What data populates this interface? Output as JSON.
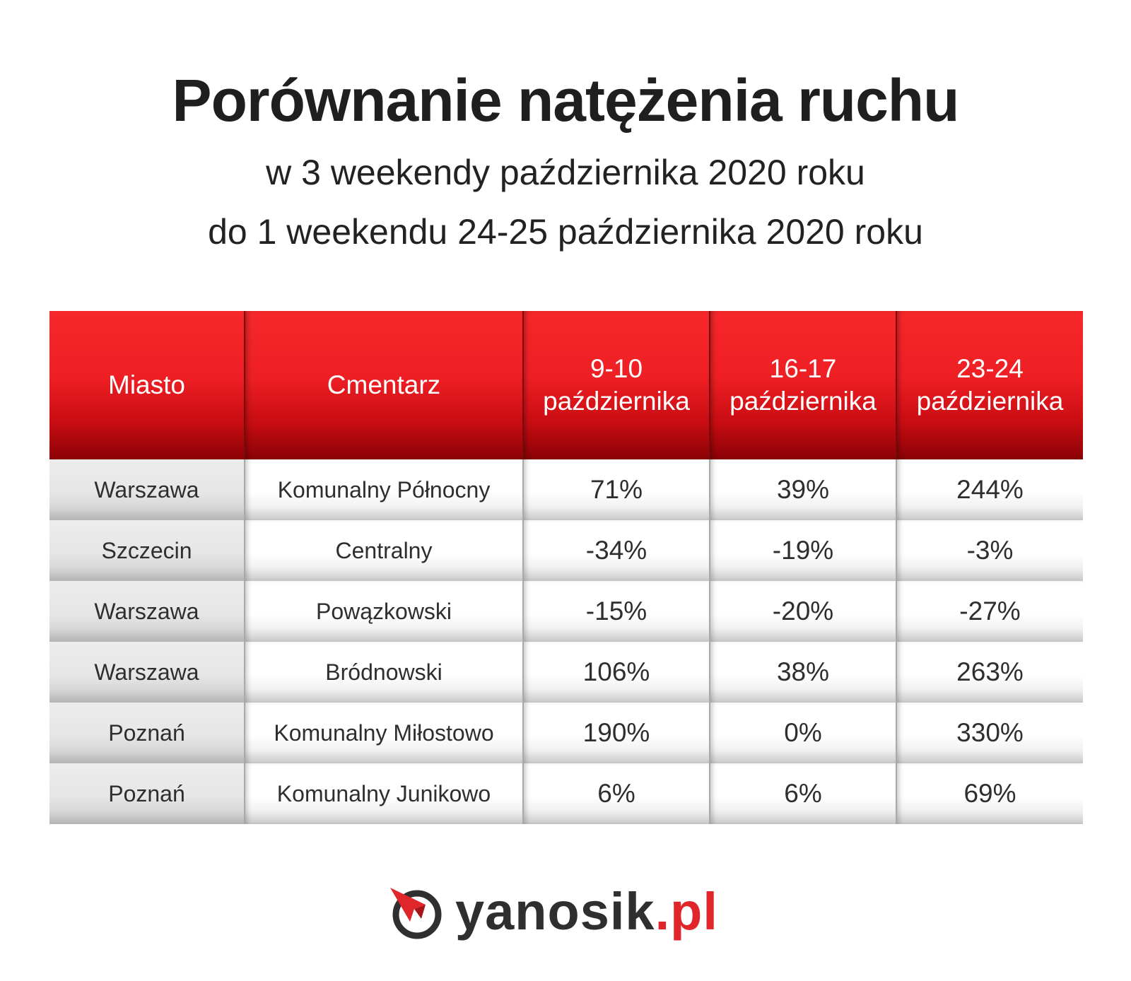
{
  "title": "Porównanie natężenia ruchu",
  "subtitle_line1": "w 3 weekendy października 2020 roku",
  "subtitle_line2": "do 1 weekendu 24-25 października 2020 roku",
  "table": {
    "headers": [
      {
        "line1": "Miasto",
        "line2": ""
      },
      {
        "line1": "Cmentarz",
        "line2": ""
      },
      {
        "line1": "9-10",
        "line2": "października"
      },
      {
        "line1": "16-17",
        "line2": "października"
      },
      {
        "line1": "23-24",
        "line2": "października"
      }
    ],
    "rows": [
      [
        "Warszawa",
        "Komunalny Północny",
        "71%",
        "39%",
        "244%"
      ],
      [
        "Szczecin",
        "Centralny",
        "-34%",
        "-19%",
        "-3%"
      ],
      [
        "Warszawa",
        "Powązkowski",
        "-15%",
        "-20%",
        "-27%"
      ],
      [
        "Warszawa",
        "Bródnowski",
        "106%",
        "38%",
        "263%"
      ],
      [
        "Poznań",
        "Komunalny Miłostowo",
        "190%",
        "0%",
        "330%"
      ],
      [
        "Poznań",
        "Komunalny Junikowo",
        "6%",
        "6%",
        "69%"
      ]
    ]
  },
  "chart_data": {
    "type": "table",
    "title": "Porównanie natężenia ruchu",
    "subtitle": "w 3 weekendy października 2020 roku do 1 weekendu 24-25 października 2020 roku",
    "columns": [
      "Miasto",
      "Cmentarz",
      "9-10 października",
      "16-17 października",
      "23-24 października"
    ],
    "rows": [
      {
        "city": "Warszawa",
        "cemetery": "Komunalny Północny",
        "values": [
          71,
          39,
          244
        ]
      },
      {
        "city": "Szczecin",
        "cemetery": "Centralny",
        "values": [
          -34,
          -19,
          -3
        ]
      },
      {
        "city": "Warszawa",
        "cemetery": "Powązkowski",
        "values": [
          -15,
          -20,
          -27
        ]
      },
      {
        "city": "Warszawa",
        "cemetery": "Bródnowski",
        "values": [
          106,
          38,
          263
        ]
      },
      {
        "city": "Poznań",
        "cemetery": "Komunalny Miłostowo",
        "values": [
          190,
          0,
          330
        ]
      },
      {
        "city": "Poznań",
        "cemetery": "Komunalny Junikowo",
        "values": [
          6,
          6,
          69
        ]
      }
    ]
  },
  "logo": {
    "name": "yanosik",
    "tld": ".pl",
    "icon": "yanosik-compass-icon",
    "colors": {
      "red": "#e0252b",
      "dark": "#2f2f2f"
    }
  }
}
